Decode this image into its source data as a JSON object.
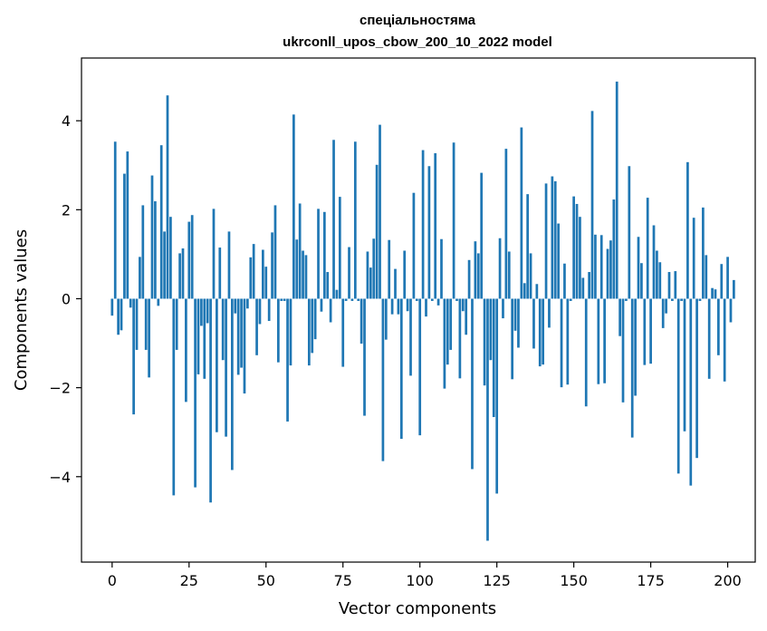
{
  "chart_data": {
    "type": "bar",
    "title_line1": "спеціальностяма",
    "title_line2": "ukrconll_upos_cbow_200_10_2022 model",
    "xlabel": "Vector components",
    "ylabel": "Components values",
    "xlim": [
      -9.95,
      208.95
    ],
    "ylim": [
      -5.92,
      5.41
    ],
    "xticks": [
      0,
      25,
      50,
      75,
      100,
      125,
      150,
      175,
      200
    ],
    "yticks": [
      -4,
      -2,
      0,
      2,
      4
    ],
    "ytick_labels": [
      "−4",
      "−2",
      "0",
      "2",
      "4"
    ],
    "bar_width": 0.8,
    "color": "#1f77b4",
    "values": [
      -0.38,
      3.53,
      -0.81,
      -0.71,
      2.81,
      3.31,
      -0.2,
      -2.6,
      -1.15,
      0.94,
      2.1,
      -1.15,
      -1.77,
      2.77,
      2.19,
      -0.16,
      3.45,
      1.51,
      4.57,
      1.84,
      -4.42,
      -1.15,
      1.02,
      1.13,
      -2.32,
      1.73,
      1.88,
      -4.24,
      -1.7,
      -0.61,
      -1.8,
      -0.55,
      -4.58,
      2.02,
      -3.0,
      1.15,
      -1.38,
      -3.1,
      1.51,
      -3.85,
      -0.33,
      -1.71,
      -1.55,
      -2.13,
      -0.22,
      0.93,
      1.23,
      -1.27,
      -0.57,
      1.1,
      0.72,
      -0.5,
      1.49,
      2.1,
      -1.43,
      -0.05,
      -0.05,
      -2.76,
      -1.5,
      4.14,
      1.33,
      2.14,
      1.08,
      0.98,
      -1.5,
      -1.22,
      -0.91,
      2.02,
      -0.29,
      1.95,
      0.6,
      -0.53,
      3.57,
      0.2,
      2.29,
      -1.53,
      -0.05,
      1.16,
      -0.05,
      3.53,
      -0.05,
      -1.01,
      -2.63,
      1.06,
      0.7,
      1.35,
      3.01,
      3.91,
      -3.65,
      -0.92,
      1.32,
      -0.35,
      0.67,
      -0.35,
      -3.15,
      1.08,
      -0.28,
      -1.73,
      2.38,
      -0.05,
      -3.07,
      3.34,
      -0.4,
      2.98,
      -0.05,
      3.27,
      -0.15,
      1.34,
      -2.02,
      -1.48,
      -1.15,
      3.51,
      -0.05,
      -1.79,
      -0.28,
      -0.81,
      0.87,
      -3.83,
      1.29,
      1.02,
      2.83,
      -1.95,
      -5.44,
      -1.38,
      -2.66,
      -4.38,
      1.36,
      -0.44,
      3.37,
      1.06,
      -1.81,
      -0.72,
      -1.1,
      3.85,
      0.35,
      2.35,
      1.02,
      -1.12,
      0.33,
      -1.52,
      -1.48,
      2.59,
      -0.65,
      2.75,
      2.64,
      1.69,
      -1.99,
      0.79,
      -1.93,
      -0.05,
      2.3,
      2.13,
      1.84,
      0.47,
      -2.42,
      0.6,
      4.22,
      1.44,
      -1.92,
      1.43,
      -1.9,
      1.12,
      1.31,
      2.23,
      4.88,
      -0.84,
      -2.33,
      -0.05,
      2.98,
      -3.12,
      -2.18,
      1.39,
      0.8,
      -1.49,
      2.27,
      -1.46,
      1.65,
      1.08,
      0.82,
      -0.66,
      -0.33,
      0.6,
      -0.05,
      0.62,
      -3.93,
      -0.05,
      -2.98,
      3.07,
      -4.2,
      1.82,
      -3.58,
      -0.05,
      2.05,
      0.98,
      -1.8,
      0.24,
      0.21,
      -1.27,
      0.78,
      -1.86,
      0.94,
      -0.53,
      0.42
    ]
  }
}
